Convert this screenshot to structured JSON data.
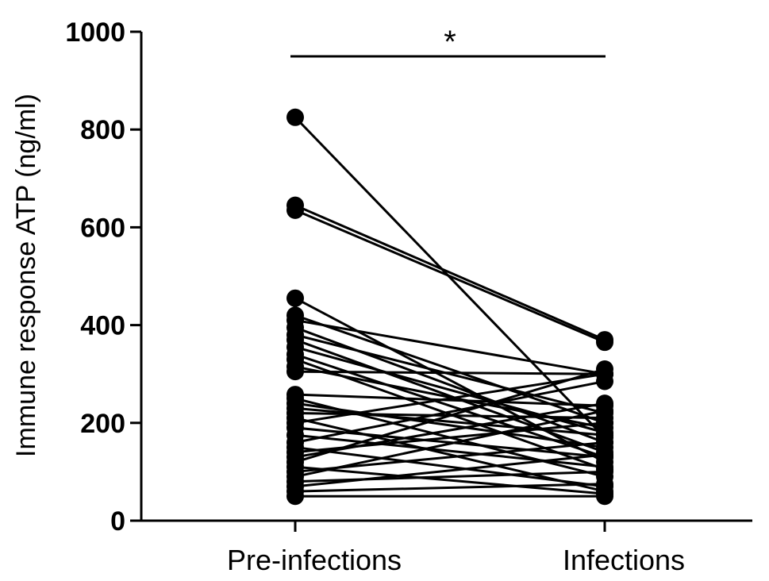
{
  "chart_data": {
    "type": "scatter",
    "subtype": "paired-before-after",
    "categories": [
      "Pre-infections",
      "Infections"
    ],
    "ylabel": "Immune response ATP (ng/ml)",
    "ylim": [
      0,
      1000
    ],
    "yticks": [
      0,
      200,
      400,
      600,
      800,
      1000
    ],
    "ytick_labels": [
      "0",
      "200",
      "400",
      "600",
      "800",
      "1000"
    ],
    "grid": false,
    "legend": "none",
    "marker_color": "#000000",
    "significance": {
      "label": "*",
      "between": [
        "Pre-infections",
        "Infections"
      ]
    },
    "pairs": [
      [
        825,
        170
      ],
      [
        645,
        370
      ],
      [
        635,
        365
      ],
      [
        455,
        120
      ],
      [
        420,
        200
      ],
      [
        410,
        300
      ],
      [
        395,
        160
      ],
      [
        380,
        220
      ],
      [
        370,
        140
      ],
      [
        355,
        180
      ],
      [
        340,
        130
      ],
      [
        330,
        105
      ],
      [
        315,
        190
      ],
      [
        305,
        300
      ],
      [
        258,
        235
      ],
      [
        250,
        90
      ],
      [
        240,
        150
      ],
      [
        230,
        175
      ],
      [
        220,
        210
      ],
      [
        210,
        60
      ],
      [
        200,
        300
      ],
      [
        190,
        130
      ],
      [
        175,
        110
      ],
      [
        160,
        285
      ],
      [
        150,
        70
      ],
      [
        140,
        200
      ],
      [
        130,
        240
      ],
      [
        120,
        310
      ],
      [
        110,
        55
      ],
      [
        100,
        160
      ],
      [
        90,
        225
      ],
      [
        80,
        100
      ],
      [
        70,
        135
      ],
      [
        60,
        75
      ],
      [
        50,
        50
      ]
    ]
  }
}
